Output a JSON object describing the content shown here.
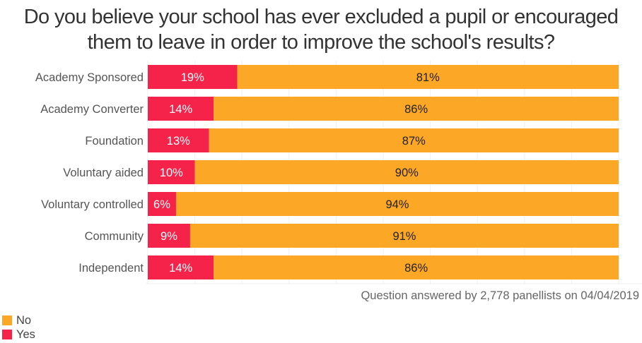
{
  "chart_data": {
    "type": "bar",
    "orientation": "horizontal",
    "stacked": true,
    "title": "Do you believe your school has ever excluded a pupil or encouraged them to leave in order to improve the school's results?",
    "title_lines": [
      "Do you believe your school has ever excluded a pupil or encouraged",
      "them to leave in order to improve the school's results?"
    ],
    "categories": [
      "Academy Sponsored",
      "Academy Converter",
      "Foundation",
      "Voluntary aided",
      "Voluntary controlled",
      "Community",
      "Independent"
    ],
    "series": [
      {
        "name": "Yes",
        "color": "#f5234a",
        "values": [
          19,
          14,
          13,
          10,
          6,
          9,
          14
        ],
        "labels": [
          "19%",
          "14%",
          "13%",
          "10%",
          "6%",
          "9%",
          "14%"
        ]
      },
      {
        "name": "No",
        "color": "#fca726",
        "values": [
          81,
          86,
          87,
          90,
          94,
          91,
          86
        ],
        "labels": [
          "81%",
          "86%",
          "87%",
          "90%",
          "94%",
          "91%",
          "86%"
        ]
      }
    ],
    "xlim": [
      0,
      100
    ],
    "xlabel": "",
    "ylabel": "",
    "grid": true,
    "legend": {
      "position": "bottom-left",
      "items": [
        {
          "name": "No",
          "color": "#fca726"
        },
        {
          "name": "Yes",
          "color": "#f5234a"
        }
      ]
    },
    "footnote": "Question answered by 2,778 panellists on 04/04/2019"
  }
}
